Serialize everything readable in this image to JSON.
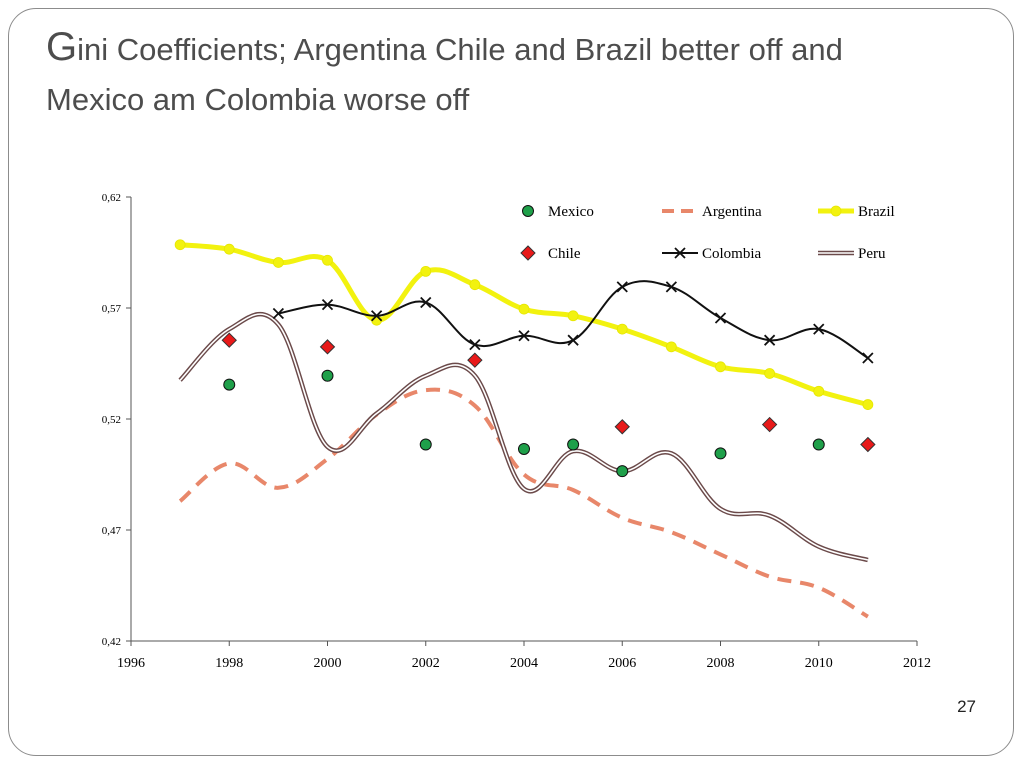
{
  "slide": {
    "title_initial": "G",
    "title_rest": "ini Coefficients; Argentina Chile and Brazil better off and Mexico am Colombia worse off",
    "page_number": "27"
  },
  "chart_data": {
    "type": "line",
    "title": "",
    "xlabel": "",
    "ylabel": "",
    "xlim": [
      1996,
      2012
    ],
    "ylim": [
      0.42,
      0.62
    ],
    "x_ticks": [
      1996,
      1998,
      2000,
      2002,
      2004,
      2006,
      2008,
      2010,
      2012
    ],
    "x_tick_labels": [
      "1996",
      "1998",
      "2000",
      "2002",
      "2004",
      "2006",
      "2008",
      "2010",
      "2012"
    ],
    "y_ticks": [
      0.42,
      0.47,
      0.52,
      0.57,
      0.62
    ],
    "y_tick_labels": [
      "0,42",
      "0,47",
      "0,52",
      "0,57",
      "0,62"
    ],
    "grid": false,
    "legend_position": "top-right",
    "series": [
      {
        "name": "Mexico",
        "style": "marker",
        "marker": "circle",
        "color": "#1fa04a",
        "points": [
          [
            1998,
            0.5355
          ],
          [
            2000,
            0.5395
          ],
          [
            2002,
            0.5085
          ],
          [
            2004,
            0.5065
          ],
          [
            2005,
            0.5085
          ],
          [
            2006,
            0.4965
          ],
          [
            2008,
            0.5045
          ],
          [
            2010,
            0.5085
          ]
        ]
      },
      {
        "name": "Argentina",
        "style": "dashed",
        "color": "#e8876a",
        "points": [
          [
            1997,
            0.483
          ],
          [
            1998,
            0.5
          ],
          [
            1999,
            0.489
          ],
          [
            2000,
            0.502
          ],
          [
            2001,
            0.522
          ],
          [
            2002,
            0.533
          ],
          [
            2003,
            0.526
          ],
          [
            2004,
            0.495
          ],
          [
            2005,
            0.488
          ],
          [
            2006,
            0.4755
          ],
          [
            2007,
            0.469
          ],
          [
            2008,
            0.459
          ],
          [
            2009,
            0.449
          ],
          [
            2010,
            0.444
          ],
          [
            2011,
            0.431
          ]
        ]
      },
      {
        "name": "Brazil",
        "style": "solid-marker",
        "marker": "circle",
        "color": "#f2f20f",
        "points": [
          [
            1997,
            0.5985
          ],
          [
            1998,
            0.5965
          ],
          [
            1999,
            0.5905
          ],
          [
            2000,
            0.5915
          ],
          [
            2001,
            0.5645
          ],
          [
            2002,
            0.5865
          ],
          [
            2003,
            0.5805
          ],
          [
            2004,
            0.5695
          ],
          [
            2005,
            0.5665
          ],
          [
            2006,
            0.5605
          ],
          [
            2007,
            0.5525
          ],
          [
            2008,
            0.5435
          ],
          [
            2009,
            0.5405
          ],
          [
            2010,
            0.5325
          ],
          [
            2011,
            0.5265
          ]
        ]
      },
      {
        "name": "Chile",
        "style": "marker",
        "marker": "diamond",
        "color": "#e81919",
        "points": [
          [
            1998,
            0.5555
          ],
          [
            2000,
            0.5525
          ],
          [
            2003,
            0.5465
          ],
          [
            2006,
            0.5165
          ],
          [
            2009,
            0.5175
          ],
          [
            2011,
            0.5085
          ]
        ]
      },
      {
        "name": "Colombia",
        "style": "solid-marker",
        "marker": "x",
        "color": "#111111",
        "points": [
          [
            1999,
            0.5675
          ],
          [
            2000,
            0.5715
          ],
          [
            2001,
            0.5665
          ],
          [
            2002,
            0.5725
          ],
          [
            2003,
            0.5535
          ],
          [
            2004,
            0.5575
          ],
          [
            2005,
            0.5555
          ],
          [
            2006,
            0.5795
          ],
          [
            2007,
            0.5795
          ],
          [
            2008,
            0.5655
          ],
          [
            2009,
            0.5555
          ],
          [
            2010,
            0.5605
          ],
          [
            2011,
            0.5475
          ]
        ]
      },
      {
        "name": "Peru",
        "style": "double-line",
        "color": "#6b4a4a",
        "points": [
          [
            1997,
            0.5375
          ],
          [
            1998,
            0.5605
          ],
          [
            1999,
            0.5625
          ],
          [
            2000,
            0.5075
          ],
          [
            2001,
            0.5225
          ],
          [
            2002,
            0.5395
          ],
          [
            2003,
            0.5395
          ],
          [
            2004,
            0.4885
          ],
          [
            2005,
            0.5055
          ],
          [
            2006,
            0.4965
          ],
          [
            2007,
            0.5045
          ],
          [
            2008,
            0.4795
          ],
          [
            2009,
            0.4765
          ],
          [
            2010,
            0.4625
          ],
          [
            2011,
            0.4565
          ]
        ]
      }
    ]
  }
}
